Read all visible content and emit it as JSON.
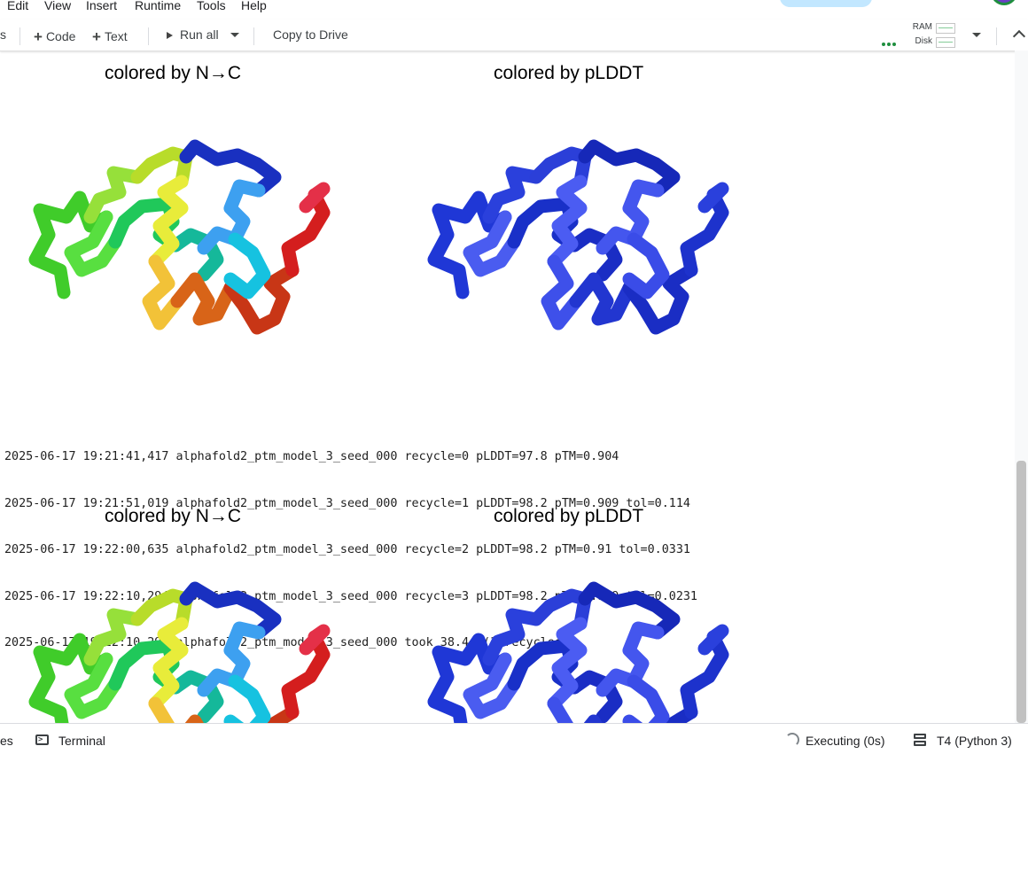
{
  "menubar": {
    "items": [
      "Edit",
      "View",
      "Insert",
      "Runtime",
      "Tools",
      "Help"
    ]
  },
  "toolbar": {
    "left_partial": "s",
    "code_label": "Code",
    "text_label": "Text",
    "run_all_label": "Run all",
    "copy_to_drive_label": "Copy to Drive",
    "ram_label": "RAM",
    "disk_label": "Disk"
  },
  "output": {
    "figure1": {
      "title_left": "colored by N→C",
      "title_right": "colored by pLDDT"
    },
    "log_lines": [
      "2025-06-17 19:21:41,417 alphafold2_ptm_model_3_seed_000 recycle=0 pLDDT=97.8 pTM=0.904",
      "2025-06-17 19:21:51,019 alphafold2_ptm_model_3_seed_000 recycle=1 pLDDT=98.2 pTM=0.909 tol=0.114",
      "2025-06-17 19:22:00,635 alphafold2_ptm_model_3_seed_000 recycle=2 pLDDT=98.2 pTM=0.91 tol=0.0331",
      "2025-06-17 19:22:10,294 alphafold2_ptm_model_3_seed_000 recycle=3 pLDDT=98.2 pTM=0.909 tol=0.0231",
      "2025-06-17 19:22:10,295 alphafold2_ptm_model_3_seed_000 took 38.4s (3 recycles)"
    ],
    "figure2": {
      "title_left": "colored by N→C",
      "title_right": "colored by pLDDT"
    }
  },
  "statusbar": {
    "left_partial": "es",
    "terminal_label": "Terminal",
    "executing_label": "Executing (0s)",
    "runtime_label": "T4 (Python 3)"
  },
  "colors": {
    "accent": "#1e8e3e",
    "share_pill": "#c2e7ff",
    "plddt_dark": "#1a2fd0",
    "plddt_light": "#4b5cf0"
  },
  "icons": {
    "run_all": "play-icon",
    "terminal": "terminal-icon",
    "runtime": "server-icon",
    "executing": "spinner-icon",
    "more": "more-dots-icon"
  }
}
